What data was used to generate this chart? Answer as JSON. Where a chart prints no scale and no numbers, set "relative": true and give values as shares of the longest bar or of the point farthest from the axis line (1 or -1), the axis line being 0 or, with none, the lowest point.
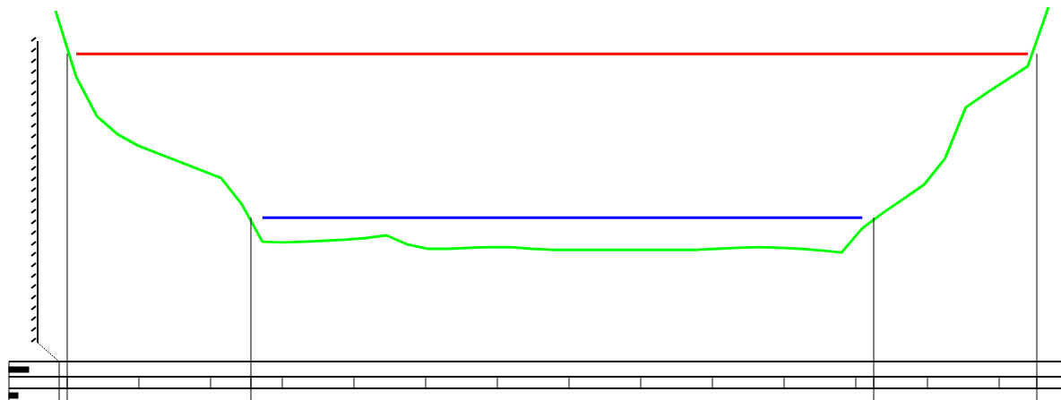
{
  "chart_data": {
    "type": "line",
    "relative": true,
    "grid": false,
    "marker": "none",
    "line_style": "solid",
    "categories": [
      null,
      null,
      null,
      null,
      null,
      null,
      null,
      null,
      null,
      null,
      null,
      null,
      null,
      null,
      null,
      null,
      null,
      null,
      null,
      null,
      null,
      null,
      null,
      null,
      null,
      null,
      null,
      null,
      null,
      null,
      null,
      null,
      null,
      null,
      null,
      null,
      null,
      null,
      null,
      null,
      null,
      null,
      null,
      null,
      null,
      null,
      null,
      null,
      null
    ],
    "series": [
      {
        "color": "#00ff00",
        "values": [
          0.989,
          0.792,
          0.675,
          0.621,
          0.587,
          0.563,
          0.539,
          0.515,
          0.491,
          0.413,
          0.301,
          0.299,
          0.301,
          0.304,
          0.307,
          0.312,
          0.32,
          0.293,
          0.28,
          0.28,
          0.283,
          0.285,
          0.285,
          0.28,
          0.277,
          0.277,
          0.277,
          0.277,
          0.277,
          0.277,
          0.277,
          0.277,
          0.28,
          0.283,
          0.285,
          0.283,
          0.28,
          0.275,
          0.269,
          0.341,
          0.387,
          0.429,
          0.472,
          0.549,
          0.701,
          0.744,
          0.784,
          0.824,
          1
        ]
      },
      {
        "color": "#ff0000",
        "values": [
          null,
          0.861,
          0.861,
          0.861,
          0.861,
          0.861,
          0.861,
          0.861,
          0.861,
          0.861,
          0.861,
          0.861,
          0.861,
          0.861,
          0.861,
          0.861,
          0.861,
          0.861,
          0.861,
          0.861,
          0.861,
          0.861,
          0.861,
          0.861,
          0.861,
          0.861,
          0.861,
          0.861,
          0.861,
          0.861,
          0.861,
          0.861,
          0.861,
          0.861,
          0.861,
          0.861,
          0.861,
          0.861,
          0.861,
          0.861,
          0.861,
          0.861,
          0.861,
          0.861,
          0.861,
          0.861,
          0.861,
          0.861,
          null
        ]
      },
      {
        "color": "#0000ff",
        "values": [
          null,
          null,
          null,
          null,
          null,
          null,
          null,
          null,
          null,
          null,
          0.373,
          0.373,
          0.373,
          0.373,
          0.373,
          0.373,
          0.373,
          0.373,
          0.373,
          0.373,
          0.373,
          0.373,
          0.373,
          0.373,
          0.373,
          0.373,
          0.373,
          0.373,
          0.373,
          0.373,
          0.373,
          0.373,
          0.373,
          0.373,
          0.373,
          0.373,
          0.373,
          0.373,
          0.373,
          0.373,
          null,
          null,
          null,
          null,
          null,
          null,
          null,
          null,
          null
        ]
      }
    ]
  }
}
